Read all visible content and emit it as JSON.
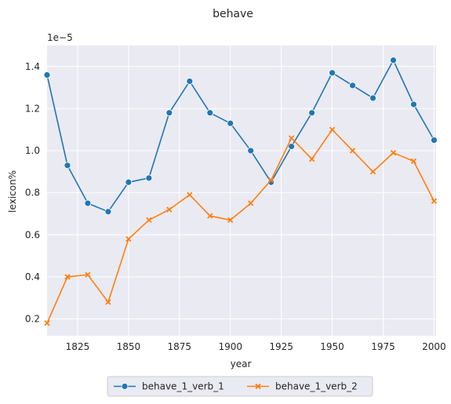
{
  "chart_data": {
    "type": "line",
    "title": "behave",
    "xlabel": "year",
    "ylabel": "lexicon%",
    "y_offset_label": "1e−5",
    "x": [
      1810,
      1820,
      1830,
      1840,
      1850,
      1860,
      1870,
      1880,
      1890,
      1900,
      1910,
      1920,
      1930,
      1940,
      1950,
      1960,
      1970,
      1980,
      1990,
      2000
    ],
    "xlim": [
      1810,
      2001
    ],
    "ylim": [
      0.12,
      1.5
    ],
    "x_ticks": [
      1825,
      1850,
      1875,
      1900,
      1925,
      1950,
      1975,
      2000
    ],
    "x_tick_labels": [
      "1825",
      "1850",
      "1875",
      "1900",
      "1925",
      "1950",
      "1975",
      "2000"
    ],
    "y_ticks": [
      0.2,
      0.4,
      0.6,
      0.8,
      1.0,
      1.2,
      1.4
    ],
    "y_tick_labels": [
      "0.2",
      "0.4",
      "0.6",
      "0.8",
      "1.0",
      "1.2",
      "1.4"
    ],
    "grid": true,
    "legend_position": "bottom-center",
    "series": [
      {
        "name": "behave_1_verb_1",
        "color": "#1f77b4",
        "marker": "circle",
        "values": [
          1.36,
          0.93,
          0.75,
          0.71,
          0.85,
          0.87,
          1.18,
          1.33,
          1.18,
          1.13,
          1.0,
          0.85,
          1.02,
          1.18,
          1.37,
          1.31,
          1.25,
          1.43,
          1.22,
          1.05
        ]
      },
      {
        "name": "behave_1_verb_2",
        "color": "#ff7f0e",
        "marker": "x",
        "values": [
          0.18,
          0.4,
          0.41,
          0.28,
          0.58,
          0.67,
          0.72,
          0.79,
          0.69,
          0.67,
          0.75,
          0.86,
          1.06,
          0.96,
          1.1,
          1.0,
          0.9,
          0.99,
          0.95,
          0.76
        ]
      }
    ]
  }
}
